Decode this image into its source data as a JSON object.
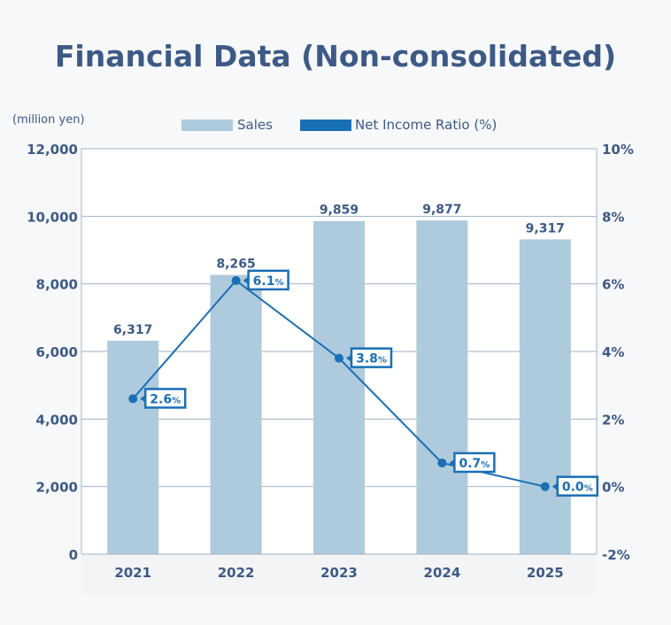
{
  "title": "Financial Data (Non-consolidated)",
  "chart_data": {
    "type": "bar+line",
    "title": "Financial Data (Non-consolidated)",
    "unit_label": "(million yen)",
    "categories": [
      "2021",
      "2022",
      "2023",
      "2024",
      "2025"
    ],
    "series": [
      {
        "name": "Sales",
        "type": "bar",
        "axis": "left",
        "values": [
          6317,
          8265,
          9859,
          9877,
          9317
        ],
        "labels": [
          "6,317",
          "8,265",
          "9,859",
          "9,877",
          "9,317"
        ],
        "color": "#aecadd"
      },
      {
        "name": "Net Income Ratio (%)",
        "type": "line",
        "axis": "right",
        "values": [
          2.6,
          6.1,
          3.8,
          0.7,
          0.0
        ],
        "labels": [
          "2.6",
          "6.1",
          "3.8",
          "0.7",
          "0.0"
        ],
        "color": "#1a6fb5"
      }
    ],
    "left_axis": {
      "ylim": [
        0,
        12000
      ],
      "ticks": [
        "0",
        "2,000",
        "4,000",
        "6,000",
        "8,000",
        "10,000",
        "12,000"
      ]
    },
    "right_axis": {
      "ylim": [
        -2,
        10
      ],
      "ticks": [
        "-2%",
        "0%",
        "2%",
        "4%",
        "6%",
        "8%",
        "10%"
      ]
    },
    "percent_sign": "%",
    "grid": true,
    "legend": "top"
  }
}
